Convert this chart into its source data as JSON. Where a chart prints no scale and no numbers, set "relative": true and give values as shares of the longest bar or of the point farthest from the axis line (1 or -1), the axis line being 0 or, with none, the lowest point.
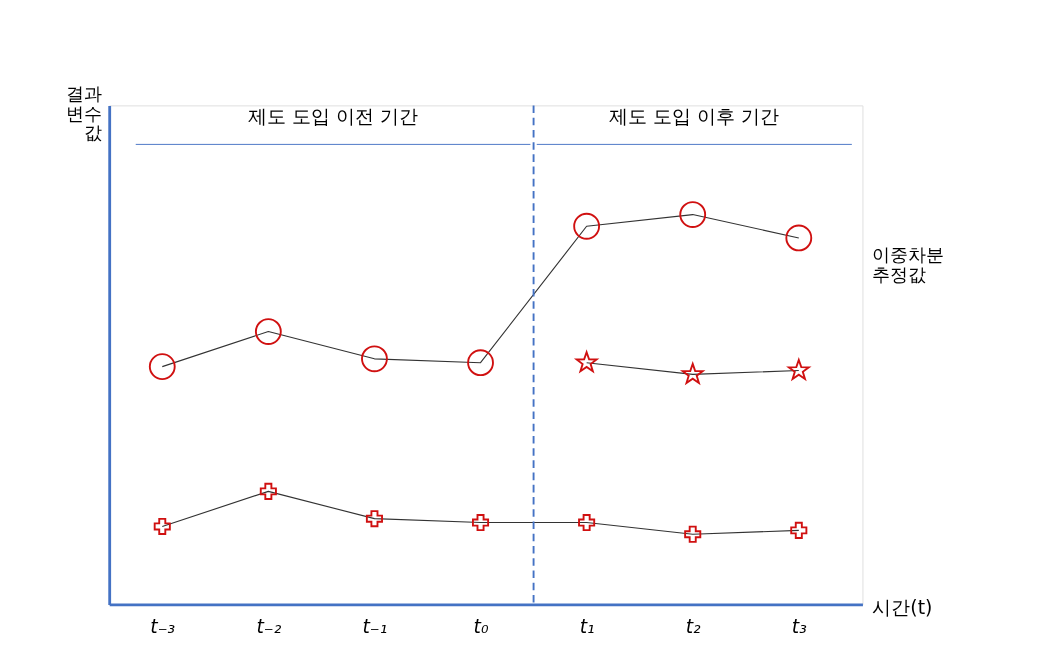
{
  "chart_data": {
    "type": "line",
    "relative": true,
    "xlabel": "시간(t)",
    "ylabel": "결과 변수 값",
    "categories": [
      "t₋₃",
      "t₋₂",
      "t₋₁",
      "t₀",
      "t₁",
      "t₂",
      "t₃"
    ],
    "series": [
      {
        "color": "#d01010",
        "marker": "circle",
        "values": [
          0.61,
          0.7,
          0.63,
          0.62,
          0.97,
          1,
          0.94
        ]
      },
      {
        "color": "#d01010",
        "marker": "star",
        "values": [
          null,
          null,
          null,
          null,
          0.62,
          0.59,
          0.6
        ]
      },
      {
        "color": "#d01010",
        "marker": "cross",
        "values": [
          0.2,
          0.29,
          0.22,
          0.21,
          0.21,
          0.18,
          0.19
        ]
      }
    ],
    "ref_lines": [
      {
        "axis": "x",
        "value": "t₀",
        "color": "#4472c4",
        "line_style": "dashed"
      }
    ],
    "annotations": [
      "제도 도입 이전 기간",
      "제도 도입 이후 기간",
      "이중차분 추정값"
    ],
    "grid": false
  }
}
